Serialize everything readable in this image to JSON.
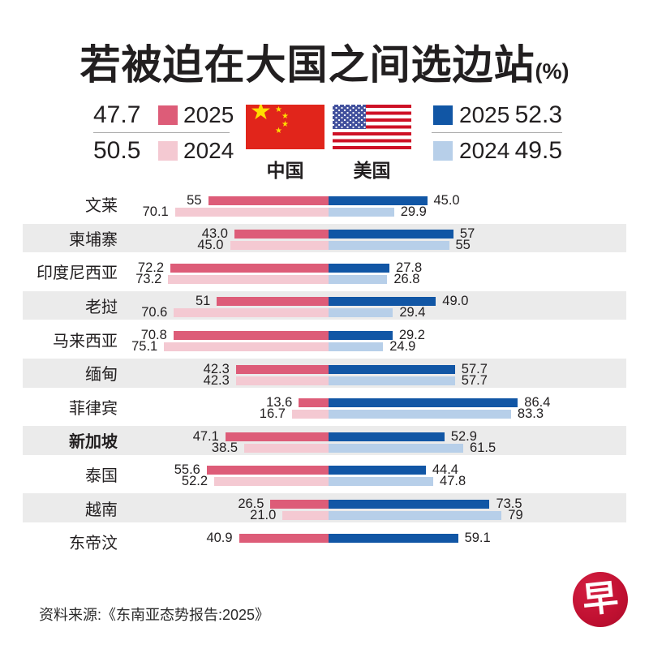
{
  "title": {
    "main": "若被迫在大国之间选边站",
    "unit": "(%)"
  },
  "legend": {
    "china": {
      "name": "中国",
      "y2025": {
        "label": "2025",
        "value": "47.7"
      },
      "y2024": {
        "label": "2024",
        "value": "50.5"
      }
    },
    "usa": {
      "name": "美国",
      "y2025": {
        "label": "2025",
        "value": "52.3"
      },
      "y2024": {
        "label": "2024",
        "value": "49.5"
      }
    }
  },
  "colors": {
    "china_2025": "#dd5c78",
    "china_2024": "#f4c9d2",
    "usa_2025": "#1156a5",
    "usa_2024": "#b7cfe9",
    "row_stripe": "#ebebeb",
    "logo_red": "#c01031"
  },
  "chart_data": {
    "type": "bar",
    "subtype": "diverging-horizontal-paired",
    "title": "若被迫在大国之间选边站 (%)",
    "legend_position": "top",
    "categories": [
      "文莱",
      "柬埔寨",
      "印度尼西亚",
      "老挝",
      "马来西亚",
      "缅甸",
      "菲律宾",
      "新加坡",
      "泰国",
      "越南",
      "东帝汶"
    ],
    "series": [
      {
        "name": "中国 2025",
        "values": [
          55,
          43.0,
          72.2,
          51,
          70.8,
          42.3,
          13.6,
          47.1,
          55.6,
          26.5,
          40.9
        ]
      },
      {
        "name": "美国 2025",
        "values": [
          45.0,
          57,
          27.8,
          49.0,
          29.2,
          57.7,
          86.4,
          52.9,
          44.4,
          73.5,
          59.1
        ]
      },
      {
        "name": "中国 2024",
        "values": [
          70.1,
          45.0,
          73.2,
          70.6,
          75.1,
          42.3,
          16.7,
          38.5,
          52.2,
          21.0,
          null
        ]
      },
      {
        "name": "美国 2024",
        "values": [
          29.9,
          55,
          26.8,
          29.4,
          24.9,
          57.7,
          83.3,
          61.5,
          47.8,
          79,
          null
        ]
      }
    ],
    "xlim": [
      -100,
      100
    ],
    "grid": false,
    "rows": [
      {
        "country": "文莱",
        "bold": false,
        "shaded": false,
        "y2025": {
          "china": 55,
          "usa": 45,
          "china_label": "55",
          "usa_label": "45.0"
        },
        "y2024": {
          "china": 70.1,
          "usa": 29.9,
          "china_label": "70.1",
          "usa_label": "29.9"
        }
      },
      {
        "country": "柬埔寨",
        "bold": false,
        "shaded": true,
        "y2025": {
          "china": 43,
          "usa": 57,
          "china_label": "43.0",
          "usa_label": "57"
        },
        "y2024": {
          "china": 45,
          "usa": 55,
          "china_label": "45.0",
          "usa_label": "55"
        }
      },
      {
        "country": "印度尼西亚",
        "bold": false,
        "shaded": false,
        "y2025": {
          "china": 72.2,
          "usa": 27.8,
          "china_label": "72.2",
          "usa_label": "27.8"
        },
        "y2024": {
          "china": 73.2,
          "usa": 26.8,
          "china_label": "73.2",
          "usa_label": "26.8"
        }
      },
      {
        "country": "老挝",
        "bold": false,
        "shaded": true,
        "y2025": {
          "china": 51,
          "usa": 49,
          "china_label": "51",
          "usa_label": "49.0"
        },
        "y2024": {
          "china": 70.6,
          "usa": 29.4,
          "china_label": "70.6",
          "usa_label": "29.4"
        }
      },
      {
        "country": "马来西亚",
        "bold": false,
        "shaded": false,
        "y2025": {
          "china": 70.8,
          "usa": 29.2,
          "china_label": "70.8",
          "usa_label": "29.2"
        },
        "y2024": {
          "china": 75.1,
          "usa": 24.9,
          "china_label": "75.1",
          "usa_label": "24.9"
        }
      },
      {
        "country": "缅甸",
        "bold": false,
        "shaded": true,
        "y2025": {
          "china": 42.3,
          "usa": 57.7,
          "china_label": "42.3",
          "usa_label": "57.7"
        },
        "y2024": {
          "china": 42.3,
          "usa": 57.7,
          "china_label": "42.3",
          "usa_label": "57.7"
        }
      },
      {
        "country": "菲律宾",
        "bold": false,
        "shaded": false,
        "y2025": {
          "china": 13.6,
          "usa": 86.4,
          "china_label": "13.6",
          "usa_label": "86.4"
        },
        "y2024": {
          "china": 16.7,
          "usa": 83.3,
          "china_label": "16.7",
          "usa_label": "83.3"
        }
      },
      {
        "country": "新加坡",
        "bold": true,
        "shaded": true,
        "y2025": {
          "china": 47.1,
          "usa": 52.9,
          "china_label": "47.1",
          "usa_label": "52.9"
        },
        "y2024": {
          "china": 38.5,
          "usa": 61.5,
          "china_label": "38.5",
          "usa_label": "61.5"
        }
      },
      {
        "country": "泰国",
        "bold": false,
        "shaded": false,
        "y2025": {
          "china": 55.6,
          "usa": 44.4,
          "china_label": "55.6",
          "usa_label": "44.4"
        },
        "y2024": {
          "china": 52.2,
          "usa": 47.8,
          "china_label": "52.2",
          "usa_label": "47.8"
        }
      },
      {
        "country": "越南",
        "bold": false,
        "shaded": true,
        "y2025": {
          "china": 26.5,
          "usa": 73.5,
          "china_label": "26.5",
          "usa_label": "73.5"
        },
        "y2024": {
          "china": 21,
          "usa": 79,
          "china_label": "21.0",
          "usa_label": "79"
        }
      },
      {
        "country": "东帝汶",
        "bold": false,
        "shaded": false,
        "y2025": {
          "china": 40.9,
          "usa": 59.1,
          "china_label": "40.9",
          "usa_label": "59.1"
        },
        "y2024": null
      }
    ]
  },
  "source": "资料来源:《东南亚态势报告:2025》",
  "logo": {
    "char": "早"
  }
}
